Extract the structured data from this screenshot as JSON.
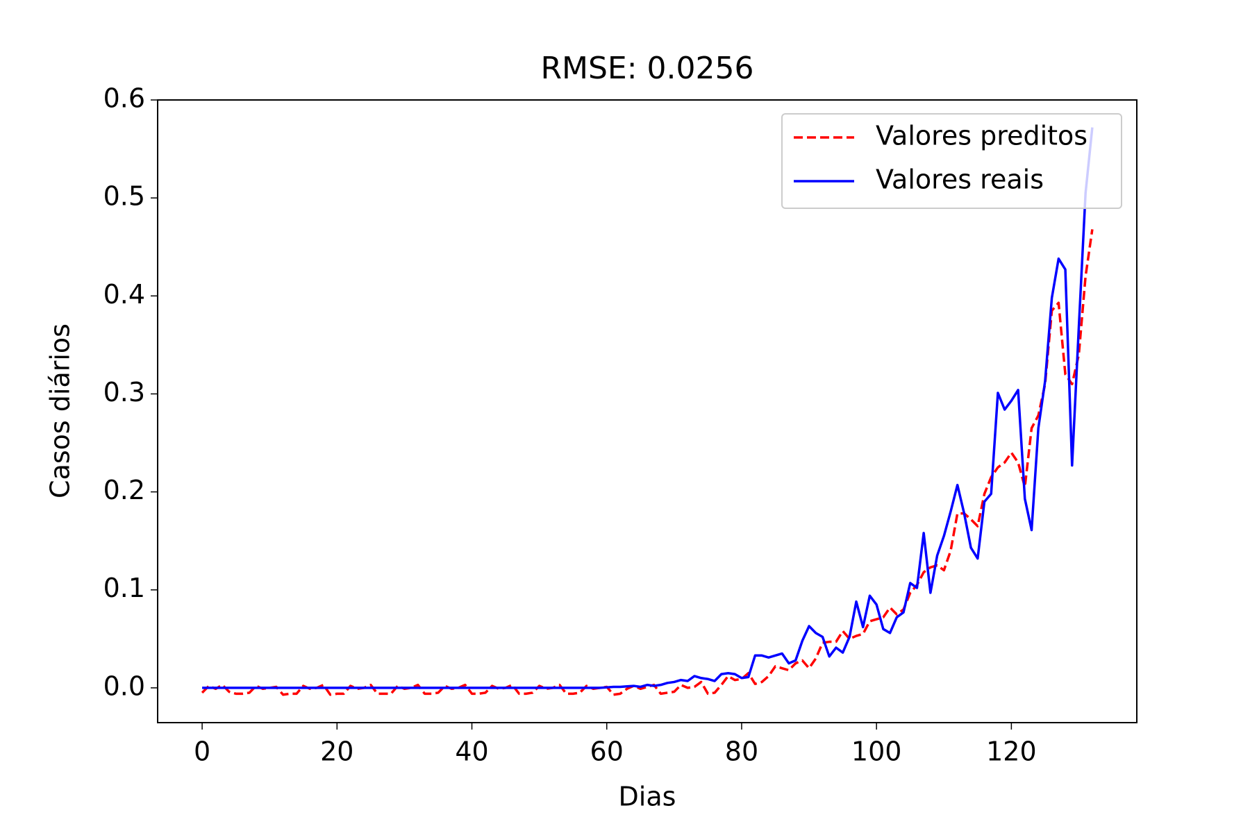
{
  "chart_data": {
    "type": "line",
    "title": "RMSE: 0.0256",
    "xlabel": "Dias",
    "ylabel": "Casos diários",
    "x": [
      0,
      1,
      2,
      3,
      4,
      5,
      6,
      7,
      8,
      9,
      10,
      11,
      12,
      13,
      14,
      15,
      16,
      17,
      18,
      19,
      20,
      21,
      22,
      23,
      24,
      25,
      26,
      27,
      28,
      29,
      30,
      31,
      32,
      33,
      34,
      35,
      36,
      37,
      38,
      39,
      40,
      41,
      42,
      43,
      44,
      45,
      46,
      47,
      48,
      49,
      50,
      51,
      52,
      53,
      54,
      55,
      56,
      57,
      58,
      59,
      60,
      61,
      62,
      63,
      64,
      65,
      66,
      67,
      68,
      69,
      70,
      71,
      72,
      73,
      74,
      75,
      76,
      77,
      78,
      79,
      80,
      81,
      82,
      83,
      84,
      85,
      86,
      87,
      88,
      89,
      90,
      91,
      92,
      93,
      94,
      95,
      96,
      97,
      98,
      99,
      100,
      101,
      102,
      103,
      104,
      105,
      106,
      107,
      108,
      109,
      110,
      111,
      112,
      113,
      114,
      115,
      116,
      117,
      118,
      119,
      120,
      121,
      122,
      123,
      124,
      125,
      126,
      127,
      128,
      129,
      130,
      131,
      132
    ],
    "series": [
      {
        "name": "Valores preditos",
        "color": "#ff0000",
        "dashed": true,
        "values": [
          -0.005,
          0.002,
          -0.001,
          0.003,
          -0.004,
          -0.006,
          -0.006,
          -0.005,
          0.002,
          -0.001,
          0.0,
          0.001,
          -0.007,
          -0.006,
          -0.006,
          0.002,
          -0.001,
          0.0,
          0.003,
          -0.007,
          -0.006,
          -0.006,
          0.002,
          -0.001,
          0.0,
          0.003,
          -0.006,
          -0.006,
          -0.006,
          0.002,
          -0.001,
          0.0,
          0.003,
          -0.006,
          -0.006,
          -0.005,
          0.002,
          -0.001,
          0.0,
          0.003,
          -0.006,
          -0.006,
          -0.005,
          0.002,
          -0.001,
          0.0,
          0.003,
          -0.006,
          -0.006,
          -0.005,
          0.002,
          -0.001,
          0.0,
          0.003,
          -0.006,
          -0.006,
          -0.005,
          0.002,
          -0.001,
          0.0,
          0.001,
          -0.007,
          -0.006,
          -0.001,
          0.002,
          -0.001,
          0.001,
          0.003,
          -0.006,
          -0.005,
          -0.004,
          0.003,
          0.0,
          0.001,
          0.006,
          -0.006,
          -0.005,
          0.003,
          0.012,
          0.008,
          0.009,
          0.015,
          0.004,
          0.006,
          0.012,
          0.022,
          0.02,
          0.018,
          0.025,
          0.028,
          0.02,
          0.03,
          0.046,
          0.047,
          0.047,
          0.058,
          0.05,
          0.053,
          0.055,
          0.068,
          0.07,
          0.072,
          0.082,
          0.075,
          0.08,
          0.097,
          0.105,
          0.118,
          0.123,
          0.125,
          0.12,
          0.14,
          0.178,
          0.178,
          0.172,
          0.165,
          0.198,
          0.215,
          0.225,
          0.23,
          0.24,
          0.23,
          0.205,
          0.265,
          0.278,
          0.31,
          0.385,
          0.393,
          0.32,
          0.31,
          0.34,
          0.42,
          0.468
        ]
      },
      {
        "name": "Valores reais",
        "color": "#0000ff",
        "dashed": false,
        "values": [
          0,
          0,
          0,
          0,
          0,
          0,
          0,
          0,
          0,
          0,
          0,
          0,
          0,
          0,
          0,
          0,
          0,
          0,
          0,
          0,
          0,
          0,
          0,
          0,
          0,
          0,
          0,
          0,
          0,
          0,
          0,
          0,
          0,
          0,
          0,
          0,
          0,
          0,
          0,
          0,
          0,
          0,
          0,
          0,
          0,
          0,
          0,
          0,
          0,
          0,
          0,
          0,
          0,
          0,
          0,
          0,
          0,
          0,
          0,
          0,
          0.0005,
          0.001,
          0.001,
          0.0015,
          0.002,
          0.001,
          0.003,
          0.002,
          0.003,
          0.005,
          0.006,
          0.008,
          0.007,
          0.012,
          0.01,
          0.009,
          0.007,
          0.014,
          0.015,
          0.014,
          0.01,
          0.011,
          0.033,
          0.033,
          0.031,
          0.033,
          0.035,
          0.025,
          0.028,
          0.048,
          0.063,
          0.056,
          0.052,
          0.032,
          0.041,
          0.036,
          0.052,
          0.088,
          0.062,
          0.094,
          0.085,
          0.06,
          0.056,
          0.072,
          0.077,
          0.107,
          0.102,
          0.158,
          0.097,
          0.135,
          0.155,
          0.18,
          0.207,
          0.178,
          0.143,
          0.132,
          0.19,
          0.198,
          0.301,
          0.284,
          0.293,
          0.304,
          0.193,
          0.161,
          0.265,
          0.313,
          0.398,
          0.438,
          0.427,
          0.227,
          0.368,
          0.505,
          0.572
        ]
      }
    ],
    "xlim": [
      -6.6,
      138.6
    ],
    "ylim": [
      -0.0355,
      0.6
    ],
    "xticks": [
      0,
      20,
      40,
      60,
      80,
      100,
      120
    ],
    "yticks": [
      {
        "value": 0,
        "label": "0.0"
      },
      0.1,
      0.2,
      0.3,
      0.4,
      0.5,
      0.6
    ],
    "legend": "upper right",
    "grid": false
  }
}
